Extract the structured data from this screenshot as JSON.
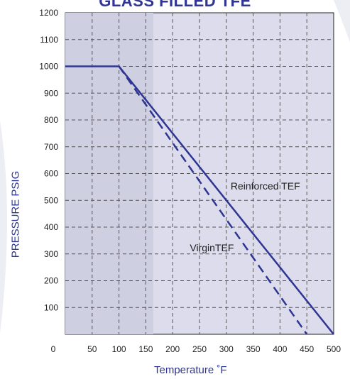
{
  "chart_data": {
    "type": "line",
    "title": "GLASS FILLED TFE",
    "xlabel": "Temperature  ˚F",
    "ylabel": "PRESSURE PSIG",
    "xlim": [
      0,
      500
    ],
    "ylim": [
      0,
      1200
    ],
    "x_ticks": [
      0,
      50,
      100,
      150,
      200,
      250,
      300,
      350,
      400,
      450,
      500
    ],
    "y_ticks": [
      100,
      200,
      300,
      400,
      500,
      600,
      700,
      800,
      900,
      1000,
      1100,
      1200
    ],
    "grid": true,
    "series": [
      {
        "name": "Reinforced TEF",
        "style": "solid",
        "color": "#2e3592",
        "points": [
          [
            0,
            1000
          ],
          [
            100,
            1000
          ],
          [
            500,
            0
          ]
        ]
      },
      {
        "name": "VirginTEF",
        "style": "dashed",
        "color": "#2e3592",
        "points": [
          [
            100,
            1000
          ],
          [
            450,
            0
          ]
        ]
      }
    ],
    "annotations": [
      {
        "text": "Reinforced TEF",
        "x": 308,
        "y": 540
      },
      {
        "text": "VirginTEF",
        "x": 232,
        "y": 310
      }
    ]
  }
}
